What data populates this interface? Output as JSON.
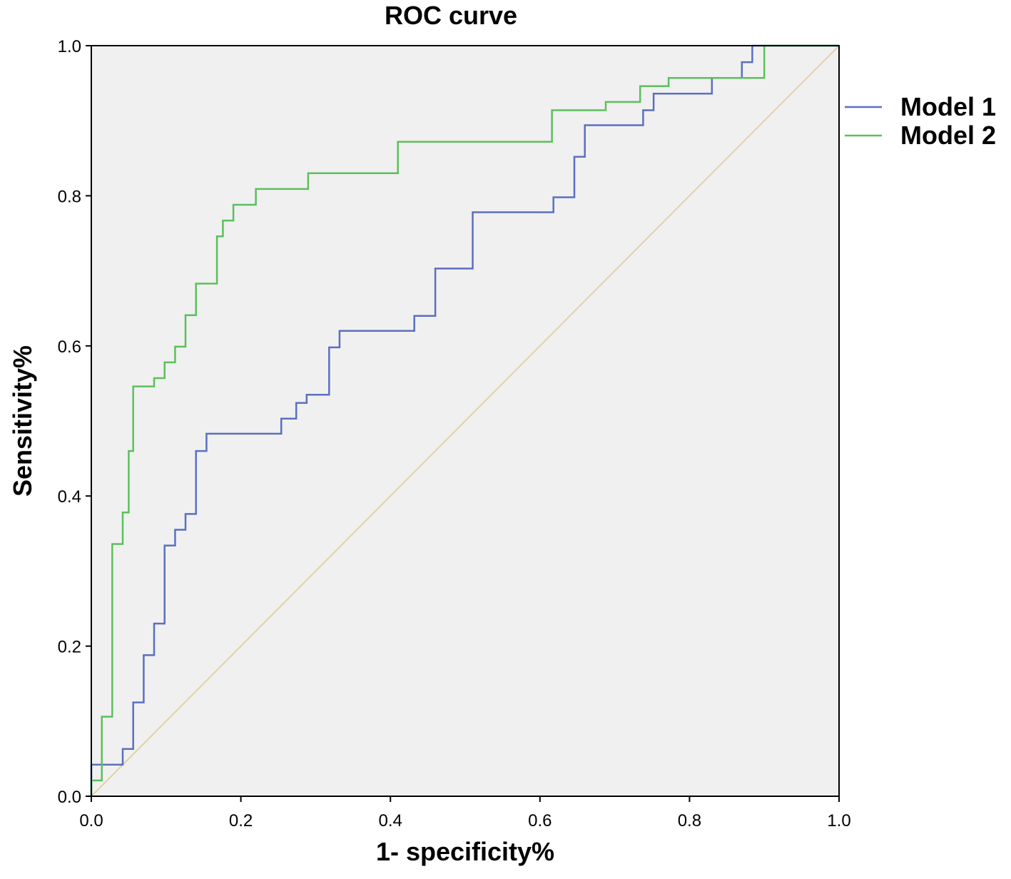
{
  "chart_data": {
    "type": "line",
    "title": "ROC curve",
    "xlabel": "1- specificity%",
    "ylabel": "Sensitivity%",
    "xlim": [
      0,
      1
    ],
    "ylim": [
      0,
      1
    ],
    "x_ticks": [
      "0.0",
      "0.2",
      "0.4",
      "0.6",
      "0.8",
      "1.0"
    ],
    "y_ticks": [
      "0.0",
      "0.2",
      "0.4",
      "0.6",
      "0.8",
      "1.0"
    ],
    "grid": false,
    "legend_position": "right",
    "background_color": "#f0f0f0",
    "reference_line": {
      "x": [
        0,
        1
      ],
      "y": [
        0,
        1
      ],
      "color": "#e0d2a8"
    },
    "series": [
      {
        "name": "Model 1",
        "color": "#5b6fc0",
        "points": [
          [
            0,
            0
          ],
          [
            0,
            0.042
          ],
          [
            0.042,
            0.042
          ],
          [
            0.042,
            0.063
          ],
          [
            0.056,
            0.063
          ],
          [
            0.056,
            0.125
          ],
          [
            0.07,
            0.125
          ],
          [
            0.07,
            0.188
          ],
          [
            0.084,
            0.188
          ],
          [
            0.084,
            0.23
          ],
          [
            0.098,
            0.23
          ],
          [
            0.098,
            0.334
          ],
          [
            0.112,
            0.334
          ],
          [
            0.112,
            0.355
          ],
          [
            0.126,
            0.355
          ],
          [
            0.126,
            0.376
          ],
          [
            0.14,
            0.376
          ],
          [
            0.14,
            0.46
          ],
          [
            0.154,
            0.46
          ],
          [
            0.154,
            0.483
          ],
          [
            0.254,
            0.483
          ],
          [
            0.254,
            0.503
          ],
          [
            0.274,
            0.503
          ],
          [
            0.274,
            0.524
          ],
          [
            0.288,
            0.524
          ],
          [
            0.288,
            0.535
          ],
          [
            0.318,
            0.535
          ],
          [
            0.318,
            0.598
          ],
          [
            0.332,
            0.598
          ],
          [
            0.332,
            0.62
          ],
          [
            0.432,
            0.62
          ],
          [
            0.432,
            0.64
          ],
          [
            0.46,
            0.64
          ],
          [
            0.46,
            0.703
          ],
          [
            0.51,
            0.703
          ],
          [
            0.51,
            0.778
          ],
          [
            0.618,
            0.778
          ],
          [
            0.618,
            0.798
          ],
          [
            0.646,
            0.798
          ],
          [
            0.646,
            0.852
          ],
          [
            0.66,
            0.852
          ],
          [
            0.66,
            0.894
          ],
          [
            0.738,
            0.894
          ],
          [
            0.738,
            0.914
          ],
          [
            0.752,
            0.914
          ],
          [
            0.752,
            0.936
          ],
          [
            0.83,
            0.936
          ],
          [
            0.83,
            0.957
          ],
          [
            0.87,
            0.957
          ],
          [
            0.87,
            0.978
          ],
          [
            0.884,
            0.978
          ],
          [
            0.884,
            1.0
          ],
          [
            1.0,
            1.0
          ]
        ]
      },
      {
        "name": "Model 2",
        "color": "#5cbf5c",
        "points": [
          [
            0,
            0
          ],
          [
            0,
            0.021
          ],
          [
            0.014,
            0.021
          ],
          [
            0.014,
            0.106
          ],
          [
            0.028,
            0.106
          ],
          [
            0.028,
            0.336
          ],
          [
            0.042,
            0.336
          ],
          [
            0.042,
            0.378
          ],
          [
            0.05,
            0.378
          ],
          [
            0.05,
            0.46
          ],
          [
            0.056,
            0.46
          ],
          [
            0.056,
            0.546
          ],
          [
            0.084,
            0.546
          ],
          [
            0.084,
            0.557
          ],
          [
            0.098,
            0.557
          ],
          [
            0.098,
            0.578
          ],
          [
            0.112,
            0.578
          ],
          [
            0.112,
            0.599
          ],
          [
            0.126,
            0.599
          ],
          [
            0.126,
            0.641
          ],
          [
            0.14,
            0.641
          ],
          [
            0.14,
            0.683
          ],
          [
            0.168,
            0.683
          ],
          [
            0.168,
            0.746
          ],
          [
            0.176,
            0.746
          ],
          [
            0.176,
            0.767
          ],
          [
            0.19,
            0.767
          ],
          [
            0.19,
            0.788
          ],
          [
            0.22,
            0.788
          ],
          [
            0.22,
            0.809
          ],
          [
            0.29,
            0.809
          ],
          [
            0.29,
            0.83
          ],
          [
            0.41,
            0.83
          ],
          [
            0.41,
            0.872
          ],
          [
            0.616,
            0.872
          ],
          [
            0.616,
            0.914
          ],
          [
            0.688,
            0.914
          ],
          [
            0.688,
            0.925
          ],
          [
            0.734,
            0.925
          ],
          [
            0.734,
            0.946
          ],
          [
            0.772,
            0.946
          ],
          [
            0.772,
            0.957
          ],
          [
            0.9,
            0.957
          ],
          [
            0.9,
            1.0
          ],
          [
            1.0,
            1.0
          ]
        ]
      }
    ]
  }
}
